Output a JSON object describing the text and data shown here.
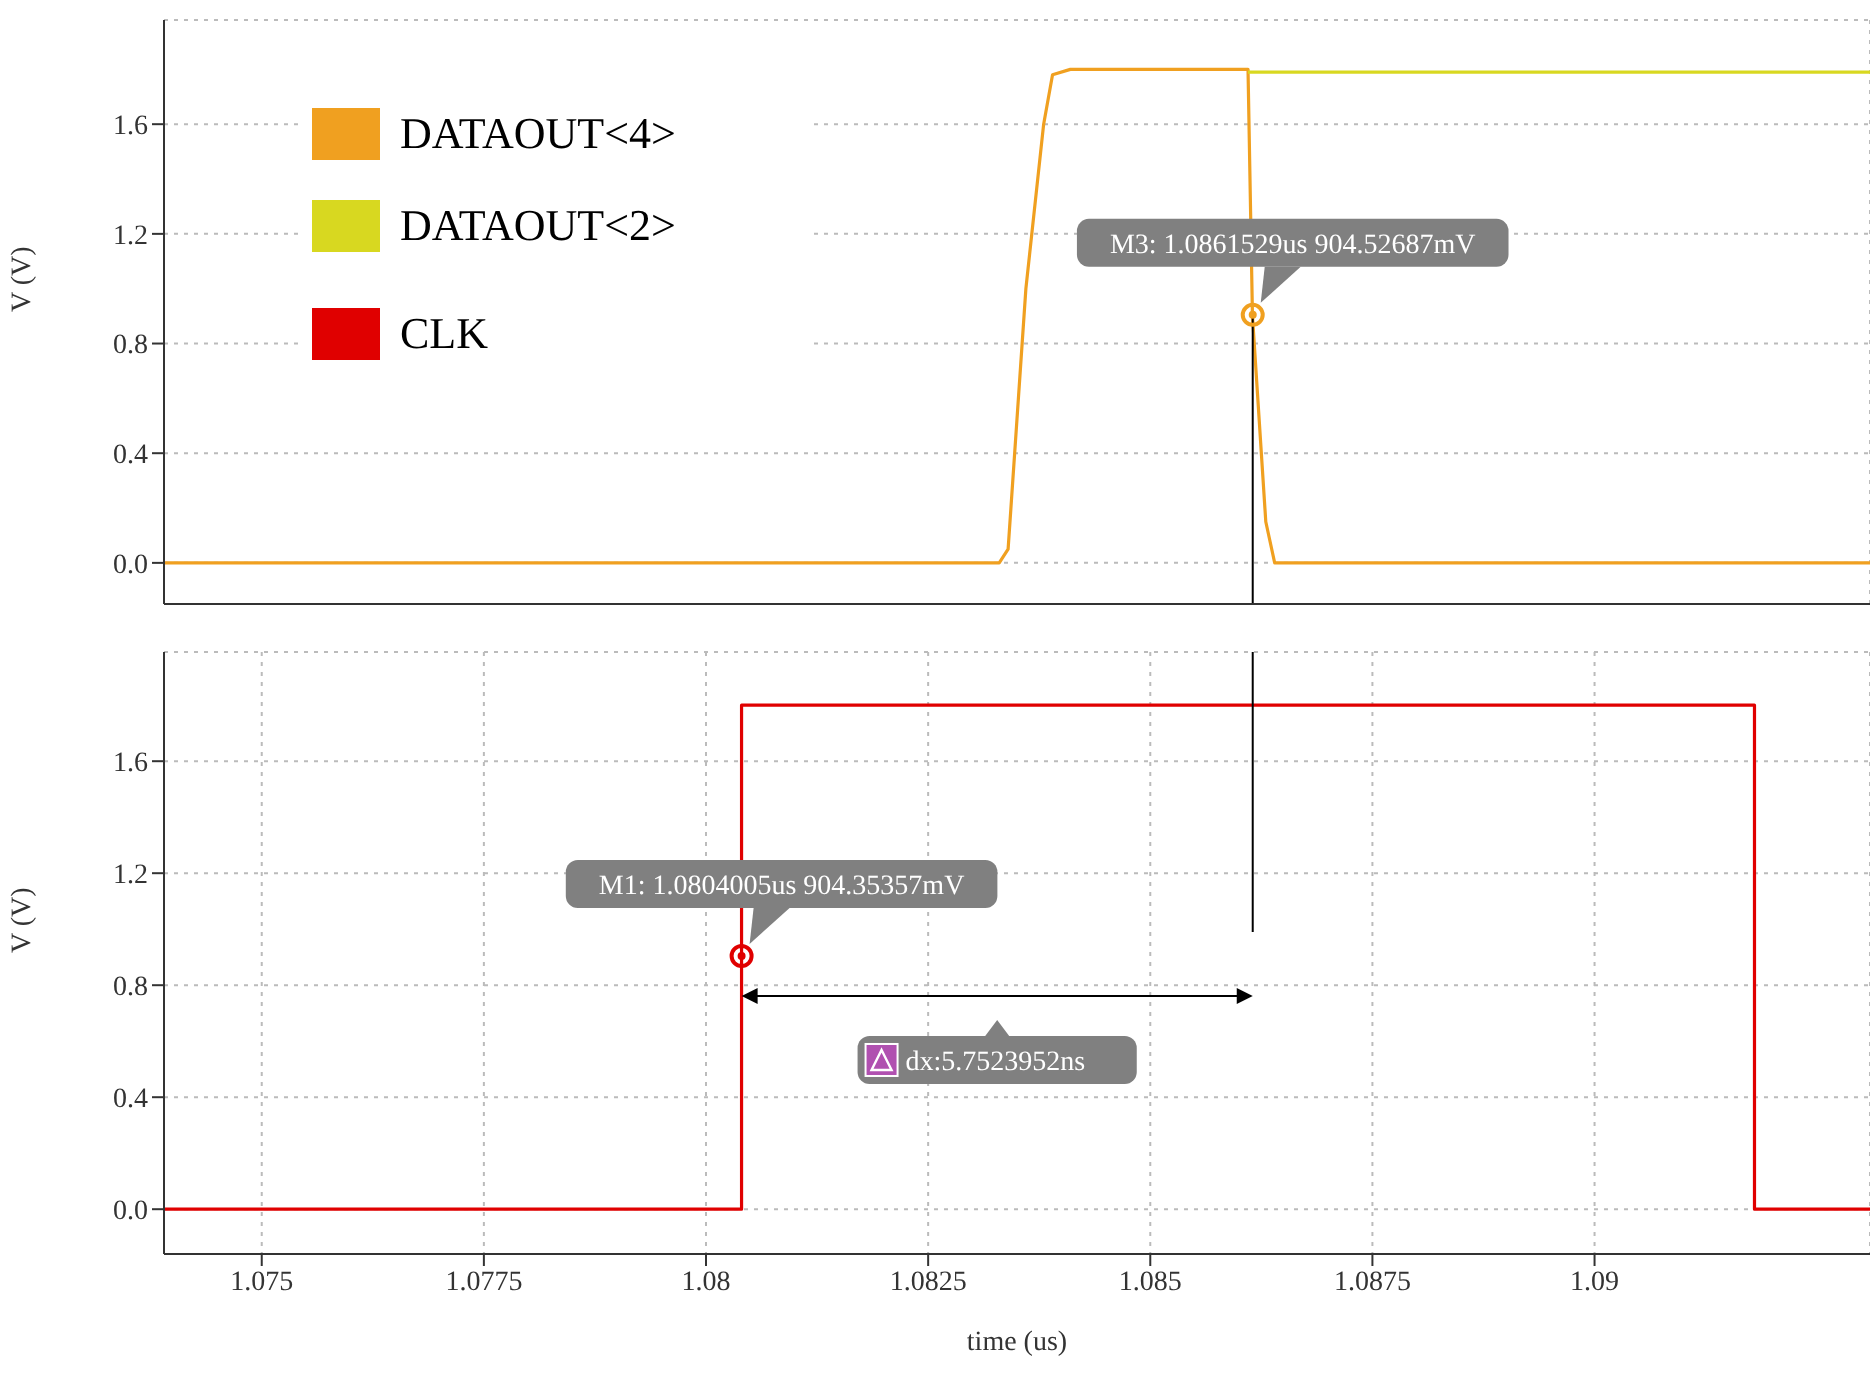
{
  "chart_data": [
    {
      "type": "line",
      "ylabel": "V (V)",
      "xlim": [
        1.0739,
        1.0931
      ],
      "xticks": [
        1.075,
        1.0775,
        1.08,
        1.0825,
        1.085,
        1.0875,
        1.09
      ],
      "ylim": [
        -0.15,
        1.98
      ],
      "yticks": [
        {
          "value": 0,
          "label": "0.0"
        },
        0.4,
        0.8,
        1.2,
        1.6
      ],
      "grid": true,
      "legend": "top left",
      "tick_labels": "y",
      "series": [
        {
          "name": "DATAOUT<4>",
          "color": "#f0a020",
          "x": [
            1.0739,
            1.0833,
            1.0834,
            1.0836,
            1.0838,
            1.0839,
            1.0841,
            1.0861,
            1.08615,
            1.0863,
            1.0864,
            1.0931
          ],
          "values": [
            0,
            0,
            0.05,
            1.0,
            1.6,
            1.78,
            1.8,
            1.8,
            0.9,
            0.15,
            0,
            0
          ]
        },
        {
          "name": "DATAOUT<2>",
          "color": "#d8d820",
          "x": [
            1.0861,
            1.0931
          ],
          "values": [
            1.79,
            1.79
          ]
        }
      ],
      "annotations": [
        {
          "text": "M3: 1.0861529us 904.52687mV",
          "x": 1.0861529,
          "y": 0.90452687
        }
      ]
    },
    {
      "type": "line",
      "ylabel": "V (V)",
      "xlabel": "time (us)",
      "xlim": [
        1.0739,
        1.0931
      ],
      "xticks": [
        1.075,
        1.0775,
        1.08,
        1.0825,
        1.085,
        1.0875,
        1.09
      ],
      "ylim": [
        -0.16,
        1.99
      ],
      "yticks": [
        {
          "value": 0,
          "label": "0.0"
        },
        0.4,
        0.8,
        1.2,
        1.6
      ],
      "grid": true,
      "legend": "top left",
      "series": [
        {
          "name": "CLK",
          "color": "#e00000",
          "x": [
            1.0739,
            1.0804,
            1.0804,
            1.0918,
            1.0918,
            1.0931
          ],
          "values": [
            0,
            0,
            1.8,
            1.8,
            0,
            0
          ]
        }
      ],
      "annotations": [
        {
          "text": "M1: 1.0804005us 904.35357mV",
          "x": 1.0804005,
          "y": 0.90435357
        },
        "dx:5.7523952ns"
      ]
    }
  ]
}
